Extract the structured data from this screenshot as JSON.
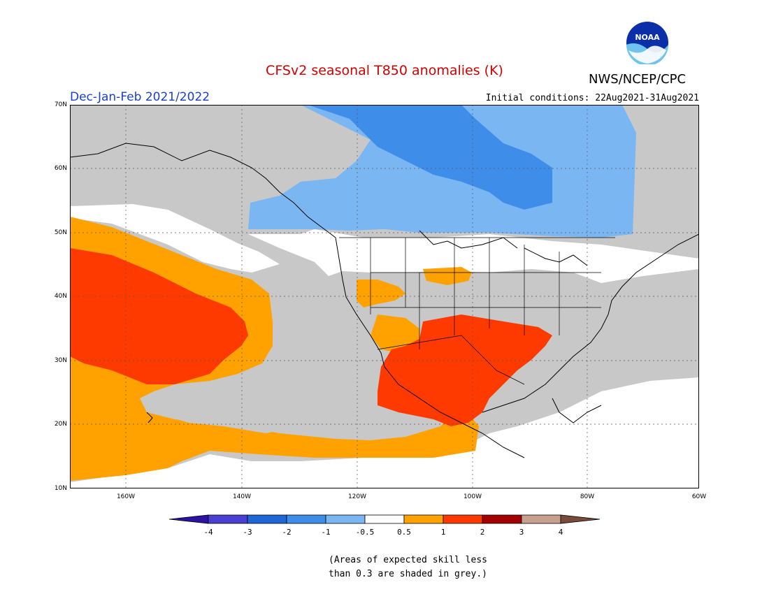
{
  "title": "CFSv2 seasonal T850 anomalies (K)",
  "agency": "NWS/NCEP/CPC",
  "logo_text": "NOAA",
  "season": "Dec-Jan-Feb 2021/2022",
  "initial_conditions": "Initial conditions: 22Aug2021-31Aug2021",
  "lat_labels": [
    "70N",
    "60N",
    "50N",
    "40N",
    "30N",
    "20N",
    "10N"
  ],
  "lon_labels": [
    "160W",
    "140W",
    "120W",
    "100W",
    "80W",
    "60W"
  ],
  "colorbar": {
    "ticks": [
      "-4",
      "-3",
      "-2",
      "-1",
      "-0.5",
      "0.5",
      "1",
      "2",
      "3",
      "4"
    ],
    "colors": [
      "#2d13a5",
      "#4a3fd2",
      "#1f66d6",
      "#3d8de9",
      "#7ab7f2",
      "#ffffff",
      "#ffa200",
      "#ff3a00",
      "#a50000",
      "#c8a08e",
      "#7a4a3a"
    ]
  },
  "note_line1": "(Areas of expected skill less",
  "note_line2": "than 0.3 are shaded in grey.)",
  "legend_colors": {
    "grey": "#c8c8c8",
    "white": "#ffffff",
    "light_blue": "#7ab7f2",
    "blue": "#3d8de9",
    "orange": "#ffa200",
    "red_orange": "#ff3a00"
  }
}
